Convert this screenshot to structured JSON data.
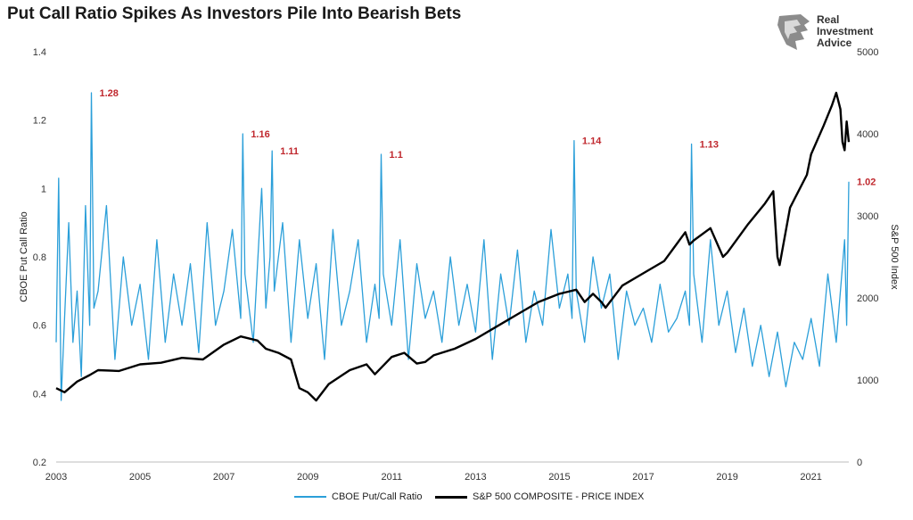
{
  "page": {
    "title": "Put Call Ratio Spikes As Investors Pile Into Bearish Bets",
    "logo": {
      "line1": "Real",
      "line2": "Investment",
      "line3": "Advice",
      "icon": "lion-head-icon"
    }
  },
  "chart_data": {
    "type": "line",
    "title": "Put Call Ratio Spikes As Investors Pile Into Bearish Bets",
    "xlabel": "",
    "ylabel_left": "CBOE Put Call Ratio",
    "ylabel_right": "S&P 500 Index",
    "x_range": [
      2003,
      2021.9
    ],
    "x_ticks": [
      "2003",
      "2005",
      "2007",
      "2009",
      "2011",
      "2013",
      "2015",
      "2017",
      "2019",
      "2021"
    ],
    "y_left_range": [
      0.2,
      1.4
    ],
    "y_left_ticks": [
      "0.2",
      "0.4",
      "0.6",
      "0.8",
      "1",
      "1.2",
      "1.4"
    ],
    "y_right_range": [
      0,
      5000
    ],
    "y_right_ticks": [
      "0",
      "1000",
      "2000",
      "3000",
      "4000",
      "5000"
    ],
    "grid": false,
    "legend_position": "bottom",
    "series": [
      {
        "name": "CBOE Put/Call Ratio",
        "axis": "left",
        "color": "#2b9fd9",
        "x": [
          2003.0,
          2003.06,
          2003.12,
          2003.2,
          2003.3,
          2003.4,
          2003.5,
          2003.6,
          2003.7,
          2003.8,
          2003.84,
          2003.9,
          2004.0,
          2004.2,
          2004.4,
          2004.6,
          2004.8,
          2005.0,
          2005.2,
          2005.4,
          2005.6,
          2005.8,
          2006.0,
          2006.2,
          2006.4,
          2006.6,
          2006.8,
          2007.0,
          2007.2,
          2007.4,
          2007.45,
          2007.5,
          2007.7,
          2007.9,
          2008.0,
          2008.1,
          2008.15,
          2008.2,
          2008.4,
          2008.6,
          2008.8,
          2009.0,
          2009.2,
          2009.4,
          2009.6,
          2009.8,
          2010.0,
          2010.2,
          2010.4,
          2010.6,
          2010.7,
          2010.75,
          2010.8,
          2011.0,
          2011.2,
          2011.4,
          2011.6,
          2011.8,
          2012.0,
          2012.2,
          2012.4,
          2012.6,
          2012.8,
          2013.0,
          2013.2,
          2013.4,
          2013.6,
          2013.8,
          2014.0,
          2014.2,
          2014.4,
          2014.6,
          2014.8,
          2015.0,
          2015.2,
          2015.3,
          2015.35,
          2015.4,
          2015.6,
          2015.8,
          2016.0,
          2016.2,
          2016.4,
          2016.6,
          2016.8,
          2017.0,
          2017.2,
          2017.4,
          2017.6,
          2017.8,
          2018.0,
          2018.1,
          2018.15,
          2018.2,
          2018.4,
          2018.6,
          2018.8,
          2019.0,
          2019.2,
          2019.4,
          2019.6,
          2019.8,
          2020.0,
          2020.2,
          2020.4,
          2020.6,
          2020.8,
          2021.0,
          2021.2,
          2021.4,
          2021.6,
          2021.8,
          2021.85,
          2021.9
        ],
        "values": [
          0.55,
          1.03,
          0.38,
          0.62,
          0.9,
          0.55,
          0.7,
          0.45,
          0.95,
          0.6,
          1.28,
          0.65,
          0.7,
          0.95,
          0.5,
          0.8,
          0.6,
          0.72,
          0.5,
          0.85,
          0.55,
          0.75,
          0.6,
          0.78,
          0.52,
          0.9,
          0.6,
          0.7,
          0.88,
          0.62,
          1.16,
          0.75,
          0.55,
          1.0,
          0.65,
          0.8,
          1.11,
          0.7,
          0.9,
          0.55,
          0.85,
          0.62,
          0.78,
          0.5,
          0.88,
          0.6,
          0.7,
          0.85,
          0.55,
          0.72,
          0.62,
          1.1,
          0.75,
          0.6,
          0.85,
          0.5,
          0.78,
          0.62,
          0.7,
          0.55,
          0.8,
          0.6,
          0.72,
          0.58,
          0.85,
          0.5,
          0.75,
          0.6,
          0.82,
          0.55,
          0.7,
          0.6,
          0.88,
          0.65,
          0.75,
          0.62,
          1.14,
          0.7,
          0.55,
          0.8,
          0.65,
          0.75,
          0.5,
          0.7,
          0.6,
          0.65,
          0.55,
          0.72,
          0.58,
          0.62,
          0.7,
          0.6,
          1.13,
          0.75,
          0.55,
          0.85,
          0.6,
          0.7,
          0.52,
          0.65,
          0.48,
          0.6,
          0.45,
          0.58,
          0.42,
          0.55,
          0.5,
          0.62,
          0.48,
          0.75,
          0.55,
          0.85,
          0.6,
          1.02
        ]
      },
      {
        "name": "S&P 500 COMPOSITE - PRICE INDEX",
        "axis": "right",
        "color": "#000000",
        "x": [
          2003.0,
          2003.2,
          2003.5,
          2003.8,
          2004.0,
          2004.5,
          2005.0,
          2005.5,
          2006.0,
          2006.5,
          2007.0,
          2007.4,
          2007.8,
          2008.0,
          2008.3,
          2008.6,
          2008.8,
          2009.0,
          2009.2,
          2009.5,
          2010.0,
          2010.4,
          2010.6,
          2011.0,
          2011.3,
          2011.6,
          2011.8,
          2012.0,
          2012.5,
          2013.0,
          2013.5,
          2014.0,
          2014.5,
          2015.0,
          2015.4,
          2015.6,
          2015.8,
          2016.0,
          2016.1,
          2016.5,
          2017.0,
          2017.5,
          2018.0,
          2018.1,
          2018.2,
          2018.6,
          2018.9,
          2019.0,
          2019.5,
          2019.9,
          2020.1,
          2020.2,
          2020.25,
          2020.5,
          2020.9,
          2021.0,
          2021.3,
          2021.5,
          2021.6,
          2021.7,
          2021.75,
          2021.8,
          2021.85,
          2021.9
        ],
        "values": [
          900,
          850,
          980,
          1060,
          1120,
          1110,
          1190,
          1210,
          1270,
          1250,
          1430,
          1530,
          1480,
          1380,
          1330,
          1250,
          900,
          850,
          750,
          950,
          1120,
          1190,
          1070,
          1280,
          1330,
          1200,
          1220,
          1300,
          1380,
          1500,
          1650,
          1800,
          1950,
          2050,
          2100,
          1950,
          2050,
          1950,
          1880,
          2150,
          2300,
          2450,
          2800,
          2650,
          2700,
          2850,
          2500,
          2550,
          2900,
          3150,
          3300,
          2500,
          2400,
          3100,
          3500,
          3750,
          4100,
          4350,
          4500,
          4300,
          3900,
          3800,
          4150,
          3900
        ]
      }
    ],
    "annotations": [
      {
        "text": "1.28",
        "x": 2003.84,
        "y": 1.28
      },
      {
        "text": "1.16",
        "x": 2007.45,
        "y": 1.16
      },
      {
        "text": "1.11",
        "x": 2008.15,
        "y": 1.11
      },
      {
        "text": "1.1",
        "x": 2010.75,
        "y": 1.1
      },
      {
        "text": "1.14",
        "x": 2015.35,
        "y": 1.14
      },
      {
        "text": "1.13",
        "x": 2018.15,
        "y": 1.13
      },
      {
        "text": "1.02",
        "x": 2021.9,
        "y": 1.02
      }
    ]
  }
}
